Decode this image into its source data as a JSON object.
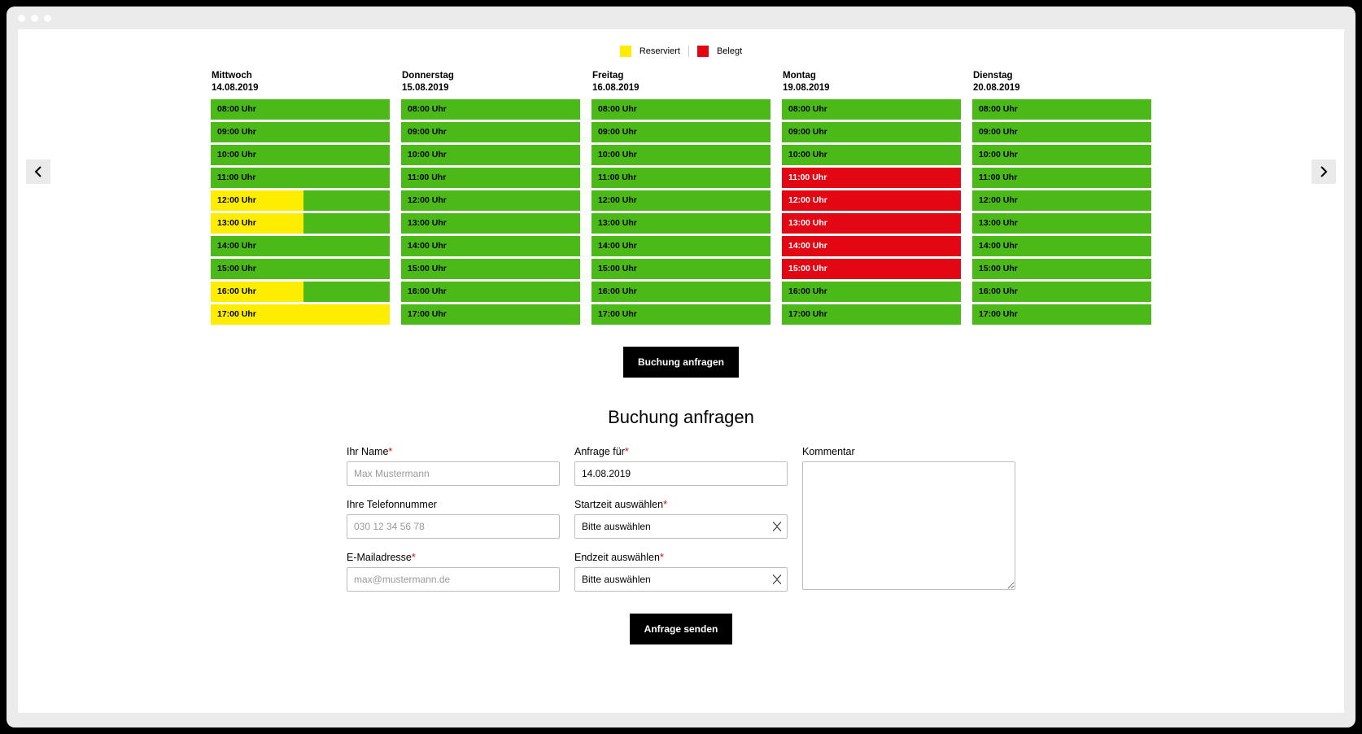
{
  "colors": {
    "free": "#4bb917",
    "reserved": "#ffed00",
    "occupied": "#e30613",
    "page_bg": "#ffffff",
    "frame_bg": "#ebebeb",
    "outer_bg": "#000000",
    "button_bg": "#000000",
    "button_fg": "#ffffff",
    "required": "#e30613"
  },
  "legend": {
    "reserved_label": "Reserviert",
    "occupied_label": "Belegt"
  },
  "calendar": {
    "days": [
      {
        "weekday": "Mittwoch",
        "date": "14.08.2019",
        "slots": [
          {
            "time": "08:00 Uhr",
            "state": "free"
          },
          {
            "time": "09:00 Uhr",
            "state": "free"
          },
          {
            "time": "10:00 Uhr",
            "state": "free"
          },
          {
            "time": "11:00 Uhr",
            "state": "free"
          },
          {
            "time": "12:00 Uhr",
            "state": "reserved_partial"
          },
          {
            "time": "13:00 Uhr",
            "state": "reserved_partial"
          },
          {
            "time": "14:00 Uhr",
            "state": "free"
          },
          {
            "time": "15:00 Uhr",
            "state": "free"
          },
          {
            "time": "16:00 Uhr",
            "state": "reserved_partial"
          },
          {
            "time": "17:00 Uhr",
            "state": "reserved_full"
          }
        ]
      },
      {
        "weekday": "Donnerstag",
        "date": "15.08.2019",
        "slots": [
          {
            "time": "08:00 Uhr",
            "state": "free"
          },
          {
            "time": "09:00 Uhr",
            "state": "free"
          },
          {
            "time": "10:00 Uhr",
            "state": "free"
          },
          {
            "time": "11:00 Uhr",
            "state": "free"
          },
          {
            "time": "12:00 Uhr",
            "state": "free"
          },
          {
            "time": "13:00 Uhr",
            "state": "free"
          },
          {
            "time": "14:00 Uhr",
            "state": "free"
          },
          {
            "time": "15:00 Uhr",
            "state": "free"
          },
          {
            "time": "16:00 Uhr",
            "state": "free"
          },
          {
            "time": "17:00 Uhr",
            "state": "free"
          }
        ]
      },
      {
        "weekday": "Freitag",
        "date": "16.08.2019",
        "slots": [
          {
            "time": "08:00 Uhr",
            "state": "free"
          },
          {
            "time": "09:00 Uhr",
            "state": "free"
          },
          {
            "time": "10:00 Uhr",
            "state": "free"
          },
          {
            "time": "11:00 Uhr",
            "state": "free"
          },
          {
            "time": "12:00 Uhr",
            "state": "free"
          },
          {
            "time": "13:00 Uhr",
            "state": "free"
          },
          {
            "time": "14:00 Uhr",
            "state": "free"
          },
          {
            "time": "15:00 Uhr",
            "state": "free"
          },
          {
            "time": "16:00 Uhr",
            "state": "free"
          },
          {
            "time": "17:00 Uhr",
            "state": "free"
          }
        ]
      },
      {
        "weekday": "Montag",
        "date": "19.08.2019",
        "slots": [
          {
            "time": "08:00 Uhr",
            "state": "free"
          },
          {
            "time": "09:00 Uhr",
            "state": "free"
          },
          {
            "time": "10:00 Uhr",
            "state": "free"
          },
          {
            "time": "11:00 Uhr",
            "state": "occupied"
          },
          {
            "time": "12:00 Uhr",
            "state": "occupied"
          },
          {
            "time": "13:00 Uhr",
            "state": "occupied"
          },
          {
            "time": "14:00 Uhr",
            "state": "occupied"
          },
          {
            "time": "15:00 Uhr",
            "state": "occupied"
          },
          {
            "time": "16:00 Uhr",
            "state": "free"
          },
          {
            "time": "17:00 Uhr",
            "state": "free"
          }
        ]
      },
      {
        "weekday": "Dienstag",
        "date": "20.08.2019",
        "slots": [
          {
            "time": "08:00 Uhr",
            "state": "free"
          },
          {
            "time": "09:00 Uhr",
            "state": "free"
          },
          {
            "time": "10:00 Uhr",
            "state": "free"
          },
          {
            "time": "11:00 Uhr",
            "state": "free"
          },
          {
            "time": "12:00 Uhr",
            "state": "free"
          },
          {
            "time": "13:00 Uhr",
            "state": "free"
          },
          {
            "time": "14:00 Uhr",
            "state": "free"
          },
          {
            "time": "15:00 Uhr",
            "state": "free"
          },
          {
            "time": "16:00 Uhr",
            "state": "free"
          },
          {
            "time": "17:00 Uhr",
            "state": "free"
          }
        ]
      }
    ]
  },
  "buttons": {
    "request_booking": "Buchung anfragen",
    "send_request": "Anfrage senden"
  },
  "form": {
    "title": "Buchung anfragen",
    "name_label": "Ihr Name",
    "name_placeholder": "Max Mustermann",
    "phone_label": "Ihre Telefonnummer",
    "phone_placeholder": "030 12 34 56 78",
    "email_label": "E-Mailadresse",
    "email_placeholder": "max@mustermann.de",
    "request_for_label": "Anfrage für",
    "request_for_value": "14.08.2019",
    "start_label": "Startzeit auswählen",
    "end_label": "Endzeit auswählen",
    "select_placeholder": "Bitte auswählen",
    "comment_label": "Kommentar"
  }
}
